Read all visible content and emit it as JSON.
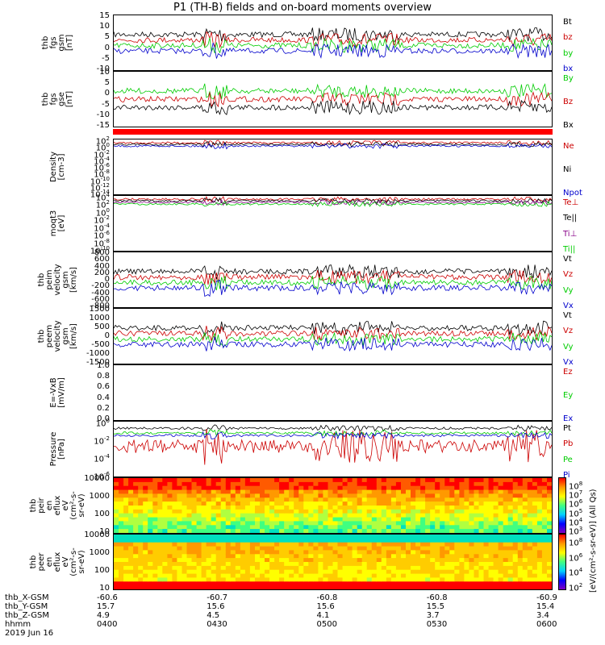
{
  "title": "P1 (TH-B) fields and on-board moments overview",
  "chart_data": [
    {
      "type": "line",
      "name": "fgs_gsm_mag",
      "ylabel": [
        "thb",
        "fgs",
        "gsm",
        "[nT]"
      ],
      "ylim": [
        -10,
        15
      ],
      "yticks": [
        "15",
        "10",
        "5",
        "0",
        "-5",
        "-10"
      ],
      "series": [
        {
          "name": "Bt",
          "color": "#000000"
        },
        {
          "name": "bz",
          "color": "#cc0000"
        },
        {
          "name": "by",
          "color": "#00cc00"
        },
        {
          "name": "bx",
          "color": "#0000cc"
        }
      ]
    },
    {
      "type": "line",
      "name": "fgs_gse",
      "ylabel": [
        "thb",
        "fgs",
        "gse",
        "[nT]"
      ],
      "ylim": [
        -15,
        10
      ],
      "yticks": [
        "10",
        "5",
        "0",
        "-5",
        "-10",
        "-15"
      ],
      "series": [
        {
          "name": "By",
          "color": "#00cc00"
        },
        {
          "name": "Bz",
          "color": "#cc0000"
        },
        {
          "name": "Bx",
          "color": "#000000"
        }
      ]
    },
    {
      "type": "line",
      "name": "density",
      "ylabel": [
        "Density",
        "[cm-3]"
      ],
      "yticks": [
        "10^2",
        "10^0",
        "10^-2",
        "10^-4",
        "10^-6",
        "10^-8",
        "10^-10",
        "10^-12",
        "10^-14"
      ],
      "series": [
        {
          "name": "Ne",
          "color": "#cc0000"
        },
        {
          "name": "Ni",
          "color": "#000000"
        },
        {
          "name": "Npot",
          "color": "#0000cc"
        }
      ]
    },
    {
      "type": "line",
      "name": "temperature",
      "ylabel": [
        "moqt3",
        "[eV]"
      ],
      "yticks": [
        "10^4",
        "10^2",
        "10^0",
        "10^-2",
        "10^-4",
        "10^-6",
        "10^-8",
        "10^-10"
      ],
      "series": [
        {
          "name": "Te⊥",
          "color": "#cc0000"
        },
        {
          "name": "Te||",
          "color": "#000000"
        },
        {
          "name": "Ti⊥",
          "color": "#880088"
        },
        {
          "name": "Ti||",
          "color": "#00cc00"
        }
      ]
    },
    {
      "type": "line",
      "name": "ion_velocity",
      "ylabel": [
        "thb",
        "peim",
        "velocity",
        "gsm",
        "[km/s]"
      ],
      "ylim": [
        -800,
        800
      ],
      "yticks": [
        "800",
        "600",
        "400",
        "200",
        "0",
        "-200",
        "-400",
        "-600",
        "-800"
      ],
      "series": [
        {
          "name": "Vt",
          "color": "#000000"
        },
        {
          "name": "Vz",
          "color": "#cc0000"
        },
        {
          "name": "Vy",
          "color": "#00cc00"
        },
        {
          "name": "Vx",
          "color": "#0000cc"
        }
      ]
    },
    {
      "type": "line",
      "name": "electron_velocity",
      "ylabel": [
        "thb",
        "peem",
        "velocity",
        "gsm",
        "[km/s]"
      ],
      "ylim": [
        -1500,
        1500
      ],
      "yticks": [
        "1500",
        "1000",
        "500",
        "0",
        "-500",
        "-1000",
        "-1500"
      ],
      "series": [
        {
          "name": "Vt",
          "color": "#000000"
        },
        {
          "name": "Vz",
          "color": "#cc0000"
        },
        {
          "name": "Vy",
          "color": "#00cc00"
        },
        {
          "name": "Vx",
          "color": "#0000cc"
        }
      ]
    },
    {
      "type": "line",
      "name": "efield",
      "ylabel": [
        "E=-VxB",
        "[mV/m]"
      ],
      "ylim": [
        0,
        1
      ],
      "yticks": [
        "1.0",
        "0.8",
        "0.6",
        "0.4",
        "0.2",
        "0.0"
      ],
      "series": [
        {
          "name": "Ez",
          "color": "#cc0000"
        },
        {
          "name": "Ey",
          "color": "#00cc00"
        },
        {
          "name": "Ex",
          "color": "#0000cc"
        }
      ]
    },
    {
      "type": "line",
      "name": "pressure",
      "ylabel": [
        "Pressure",
        "[nPa]"
      ],
      "yticks": [
        "10^0",
        "10^-2",
        "10^-4",
        "10^-6"
      ],
      "series": [
        {
          "name": "Pt",
          "color": "#000000"
        },
        {
          "name": "Pb",
          "color": "#cc0000"
        },
        {
          "name": "Pe",
          "color": "#00cc00"
        },
        {
          "name": "Pi",
          "color": "#0000cc"
        }
      ]
    },
    {
      "type": "heatmap",
      "name": "ion_spectrogram",
      "ylabel": [
        "thb",
        "peir",
        "en",
        "eflux",
        "eV",
        "(cm^2-s-",
        "sr-eV)"
      ],
      "yticks": [
        "10000",
        "1000",
        "100",
        "10"
      ]
    },
    {
      "type": "heatmap",
      "name": "electron_spectrogram",
      "ylabel": [
        "thb",
        "peer",
        "en",
        "eflux",
        "eV",
        "(cm^2-s-",
        "sr-eV)"
      ],
      "yticks": [
        "10000",
        "1000",
        "100",
        "10"
      ]
    }
  ],
  "colorbars": [
    {
      "ticks": [
        "10^8",
        "10^7",
        "10^6",
        "10^5",
        "10^4",
        "10^3"
      ]
    },
    {
      "ticks": [
        "10^8",
        "10^6",
        "10^4",
        "10^2"
      ]
    }
  ],
  "colorbar_label": "[eV/(cm^2-s-sr-eV)] (All Qs)",
  "x_axis": {
    "rows": [
      {
        "label": "thb_X-GSM",
        "values": [
          "-60.6",
          "-60.7",
          "-60.8",
          "-60.8",
          "-60.9"
        ]
      },
      {
        "label": "thb_Y-GSM",
        "values": [
          "15.7",
          "15.6",
          "15.6",
          "15.5",
          "15.4"
        ]
      },
      {
        "label": "thb_Z-GSM",
        "values": [
          "4.9",
          "4.5",
          "4.1",
          "3.7",
          "3.4"
        ]
      },
      {
        "label": "hhmm",
        "values": [
          "0400",
          "0430",
          "0500",
          "0530",
          "0600"
        ]
      }
    ],
    "date": "2019 Jun 16"
  }
}
